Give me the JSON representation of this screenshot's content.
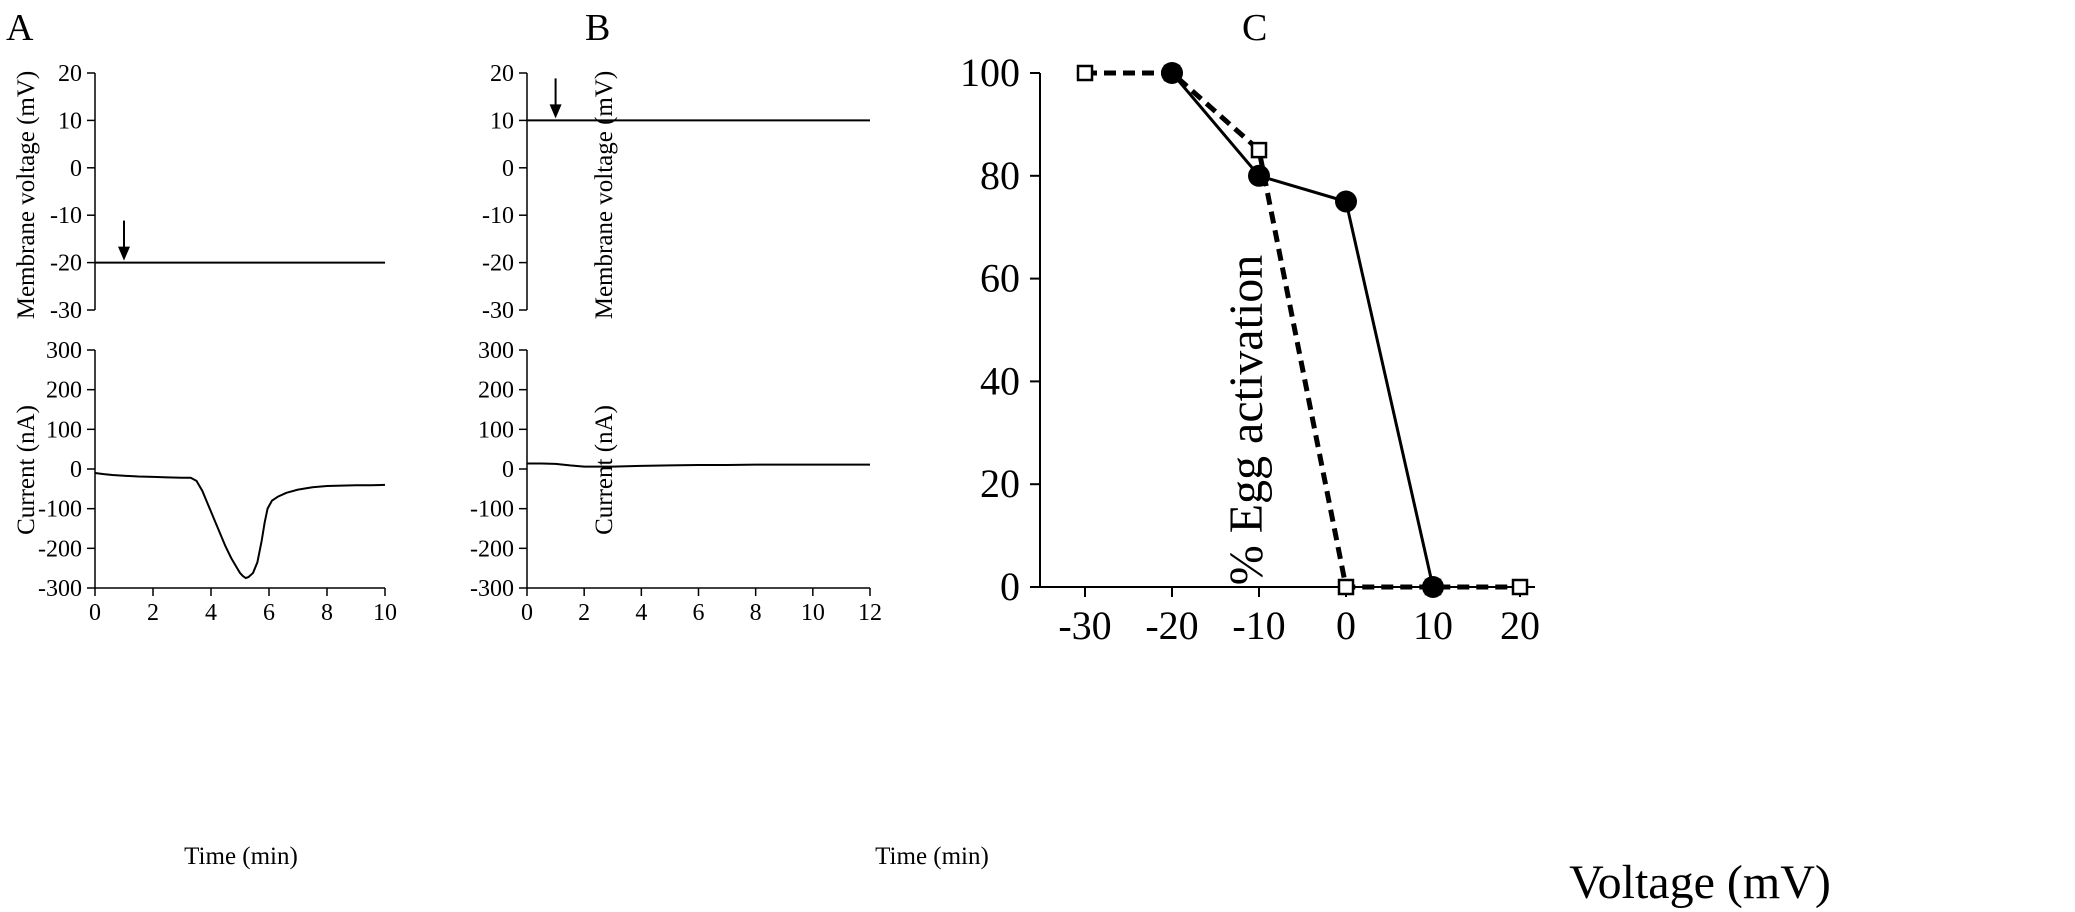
{
  "colors": {
    "ink": "#000000",
    "background": "#ffffff"
  },
  "panels": {
    "A": {
      "letter": "A",
      "voltage": {
        "ylabel": "Membrane voltage (mV)",
        "ylim": [
          -30,
          20
        ],
        "yticks": [
          "20",
          "10",
          "0",
          "-10",
          "-20",
          "-30"
        ],
        "hold_mV": -20,
        "arrow_time_min": 1
      },
      "current": {
        "ylabel": "Current (nA)",
        "ylim": [
          -300,
          300
        ],
        "yticks": [
          "300",
          "200",
          "100",
          "0",
          "-100",
          "-200",
          "-300"
        ],
        "xlabel": "Time (min)",
        "xlim": [
          0,
          10
        ],
        "xticks": [
          "0",
          "2",
          "4",
          "6",
          "8",
          "10"
        ]
      }
    },
    "B": {
      "letter": "B",
      "voltage": {
        "ylabel": "Membrane voltage (mV)",
        "ylim": [
          -30,
          20
        ],
        "yticks": [
          "20",
          "10",
          "0",
          "-10",
          "-20",
          "-30"
        ],
        "hold_mV": 10,
        "arrow_time_min": 1
      },
      "current": {
        "ylabel": "Current (nA)",
        "ylim": [
          -300,
          300
        ],
        "yticks": [
          "300",
          "200",
          "100",
          "0",
          "-100",
          "-200",
          "-300"
        ],
        "xlabel": "Time (min)",
        "xlim": [
          0,
          12
        ],
        "xticks": [
          "0",
          "2",
          "4",
          "6",
          "8",
          "10",
          "12"
        ]
      }
    },
    "C": {
      "letter": "C",
      "xlabel": "Voltage (mV)",
      "ylabel": "% Egg activation",
      "xlim": [
        -35,
        25
      ],
      "ylim": [
        0,
        100
      ],
      "xticks": [
        "-30",
        "-20",
        "-10",
        "0",
        "10",
        "20"
      ],
      "yticks": [
        "100",
        "80",
        "60",
        "40",
        "20",
        "0"
      ]
    }
  },
  "chart_data": [
    {
      "type": "line",
      "panel": "A",
      "title": "",
      "xlabel": "Time (min)",
      "ylabel": "Membrane voltage (mV)",
      "xlim": [
        0,
        10
      ],
      "ylim": [
        -30,
        20
      ],
      "series": [
        {
          "x": [
            0,
            10
          ],
          "y": [
            -20,
            -20
          ]
        }
      ]
    },
    {
      "type": "line",
      "panel": "A",
      "title": "",
      "xlabel": "Time (min)",
      "ylabel": "Current (nA)",
      "xlim": [
        0,
        10
      ],
      "ylim": [
        -300,
        300
      ],
      "series": [
        {
          "x": [
            0,
            0.3,
            0.6,
            1.0,
            1.5,
            2.0,
            2.5,
            3.0,
            3.3,
            3.5,
            3.7,
            3.9,
            4.1,
            4.3,
            4.5,
            4.7,
            4.9,
            5.0,
            5.1,
            5.2,
            5.3,
            5.45,
            5.6,
            5.75,
            5.85,
            5.95,
            6.1,
            6.3,
            6.6,
            7.0,
            7.5,
            8.0,
            8.5,
            9.0,
            9.5,
            10.0
          ],
          "y": [
            -10,
            -13,
            -15,
            -17,
            -19,
            -20,
            -21,
            -22,
            -22,
            -30,
            -55,
            -90,
            -125,
            -160,
            -195,
            -225,
            -250,
            -262,
            -270,
            -275,
            -272,
            -262,
            -235,
            -180,
            -135,
            -100,
            -80,
            -70,
            -60,
            -52,
            -46,
            -43,
            -42,
            -41,
            -41,
            -40
          ]
        }
      ]
    },
    {
      "type": "line",
      "panel": "B",
      "title": "",
      "xlabel": "Time (min)",
      "ylabel": "Membrane voltage (mV)",
      "xlim": [
        0,
        12
      ],
      "ylim": [
        -30,
        20
      ],
      "series": [
        {
          "x": [
            0,
            12
          ],
          "y": [
            10,
            10
          ]
        }
      ]
    },
    {
      "type": "line",
      "panel": "B",
      "title": "",
      "xlabel": "Time (min)",
      "ylabel": "Current (nA)",
      "xlim": [
        0,
        12
      ],
      "ylim": [
        -300,
        300
      ],
      "series": [
        {
          "x": [
            0,
            0.5,
            1.0,
            1.5,
            2.0,
            3.0,
            4.0,
            5.0,
            6.0,
            7.0,
            8.0,
            9.0,
            10.0,
            11.0,
            12.0
          ],
          "y": [
            14,
            14,
            13,
            9,
            6,
            6,
            8,
            9,
            10,
            10,
            11,
            11,
            11,
            11,
            11
          ]
        }
      ]
    },
    {
      "type": "line",
      "panel": "C",
      "title": "",
      "xlabel": "Voltage (mV)",
      "ylabel": "% Egg activation",
      "xlim": [
        -35,
        25
      ],
      "ylim": [
        0,
        100
      ],
      "series": [
        {
          "marker": "filled-circle",
          "line": "solid",
          "x": [
            -20,
            -10,
            0,
            10
          ],
          "y": [
            100,
            80,
            75,
            0
          ]
        },
        {
          "marker": "open-square",
          "line": "dashed",
          "x": [
            -30,
            -20,
            -10,
            0,
            10,
            20
          ],
          "y": [
            100,
            100,
            85,
            0,
            0,
            0
          ]
        }
      ]
    }
  ]
}
